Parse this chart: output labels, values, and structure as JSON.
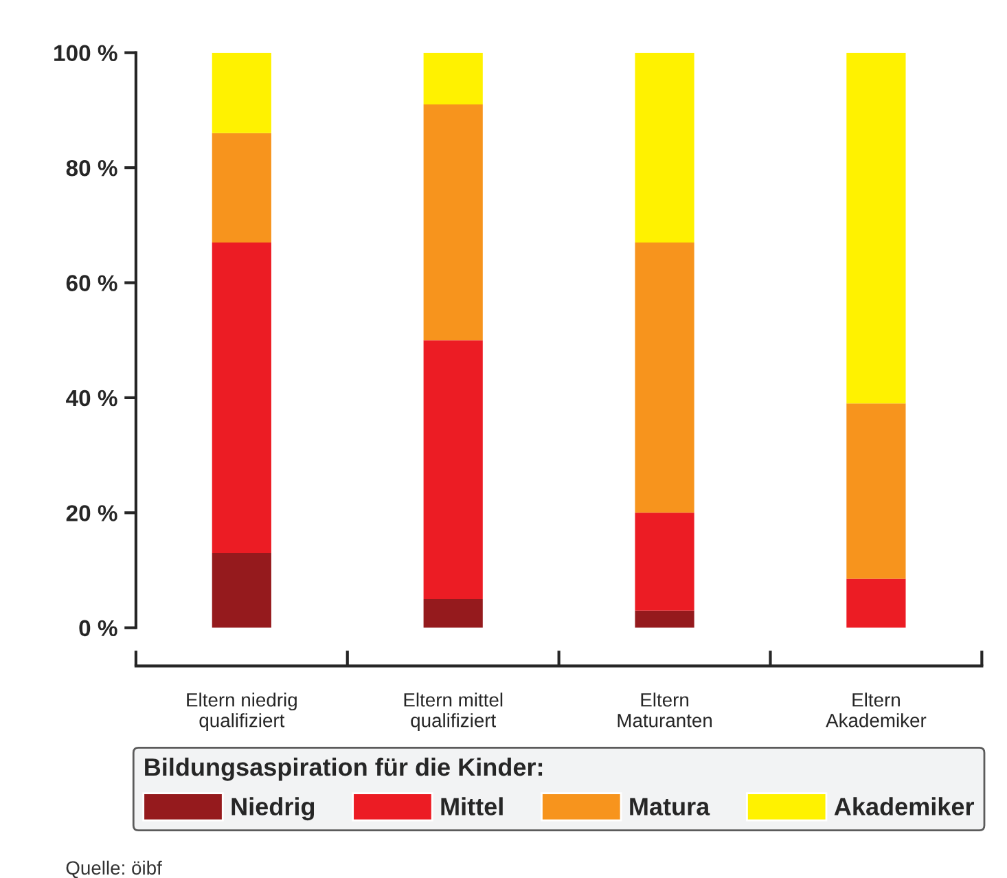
{
  "chart_data": {
    "type": "bar",
    "stacked": true,
    "categories": [
      "Eltern niedrig\nqualifiziert",
      "Eltern mittel\nqualifiziert",
      "Eltern\nMaturanten",
      "Eltern\nAkademiker"
    ],
    "series": [
      {
        "name": "Niedrig",
        "color": "#951a1d",
        "values": [
          13,
          5,
          3,
          0
        ]
      },
      {
        "name": "Mittel",
        "color": "#ec1c24",
        "values": [
          54,
          45,
          17,
          8.5
        ]
      },
      {
        "name": "Matura",
        "color": "#f7941d",
        "values": [
          19,
          41,
          47,
          30.5
        ]
      },
      {
        "name": "Akademiker",
        "color": "#fff200",
        "values": [
          14,
          9,
          33,
          61
        ]
      }
    ],
    "ylim": [
      0,
      100
    ],
    "yticks": [
      {
        "value": 0,
        "label": "0 %"
      },
      {
        "value": 20,
        "label": "20 %"
      },
      {
        "value": 40,
        "label": "40 %"
      },
      {
        "value": 60,
        "label": "60 %"
      },
      {
        "value": 80,
        "label": "80 %"
      },
      {
        "value": 100,
        "label": "100 %"
      }
    ],
    "legend_title": "Bildungsaspiration für die Kinder:",
    "legend": "bottom",
    "grid": false,
    "annotations": [
      "Quelle: öibf"
    ]
  }
}
